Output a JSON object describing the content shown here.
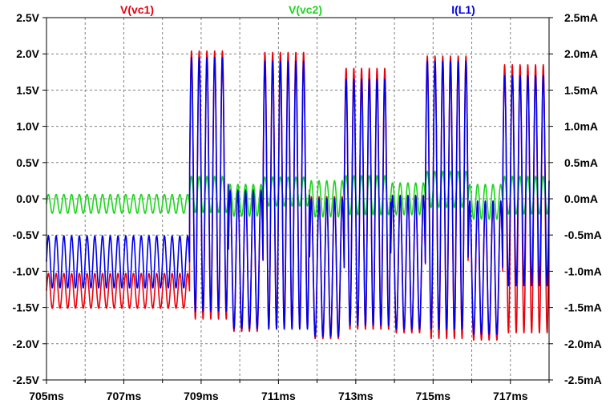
{
  "chart_data": {
    "type": "line",
    "title": "",
    "x_unit": "ms",
    "left_unit": "V",
    "right_unit": "mA",
    "xlim": [
      705,
      718
    ],
    "ylim_left": [
      -2.5,
      2.5
    ],
    "ylim_right": [
      -2.5,
      2.5
    ],
    "grid": true,
    "legend_placement": "top",
    "x_ticks": [
      {
        "value": 705,
        "label": "705ms"
      },
      {
        "value": 707,
        "label": "707ms"
      },
      {
        "value": 709,
        "label": "709ms"
      },
      {
        "value": 711,
        "label": "711ms"
      },
      {
        "value": 713,
        "label": "713ms"
      },
      {
        "value": 715,
        "label": "715ms"
      },
      {
        "value": 717,
        "label": "717ms"
      }
    ],
    "x_minor_ticks": [
      706,
      708,
      710,
      712,
      714,
      716,
      718
    ],
    "y_ticks_left": [
      {
        "value": 2.5,
        "label": "2.5V"
      },
      {
        "value": 2.0,
        "label": "2.0V"
      },
      {
        "value": 1.5,
        "label": "1.5V"
      },
      {
        "value": 1.0,
        "label": "1.0V"
      },
      {
        "value": 0.5,
        "label": "0.5V"
      },
      {
        "value": 0.0,
        "label": "0.0V"
      },
      {
        "value": -0.5,
        "label": "-0.5V"
      },
      {
        "value": -1.0,
        "label": "-1.0V"
      },
      {
        "value": -1.5,
        "label": "-1.5V"
      },
      {
        "value": -2.0,
        "label": "-2.0V"
      },
      {
        "value": -2.5,
        "label": "-2.5V"
      }
    ],
    "y_ticks_right": [
      {
        "value": 2.5,
        "label": "2.5mA"
      },
      {
        "value": 2.0,
        "label": "2.0mA"
      },
      {
        "value": 1.5,
        "label": "1.5mA"
      },
      {
        "value": 1.0,
        "label": "1.0mA"
      },
      {
        "value": 0.5,
        "label": "0.5mA"
      },
      {
        "value": 0.0,
        "label": "0.0mA"
      },
      {
        "value": -0.5,
        "label": "-0.5mA"
      },
      {
        "value": -1.0,
        "label": "-1.0mA"
      },
      {
        "value": -1.5,
        "label": "-1.5mA"
      },
      {
        "value": -2.0,
        "label": "-2.0mA"
      },
      {
        "value": -2.5,
        "label": "-2.5mA"
      }
    ],
    "carrier_period_ms": 0.2,
    "series": [
      {
        "name": "V(vc1)",
        "color": "#e8000b",
        "axis": "left",
        "segments": [
          {
            "start": 705.0,
            "end": 708.7,
            "center": -1.27,
            "amp": 0.24
          },
          {
            "start": 708.7,
            "end": 709.7,
            "center": 0.19,
            "amp": 1.85
          },
          {
            "start": 709.7,
            "end": 710.6,
            "center": -0.85,
            "amp": 0.98
          },
          {
            "start": 710.6,
            "end": 711.8,
            "center": 0.12,
            "amp": 1.9
          },
          {
            "start": 711.8,
            "end": 712.7,
            "center": -0.95,
            "amp": 0.98
          },
          {
            "start": 712.7,
            "end": 713.9,
            "center": 0.0,
            "amp": 1.8
          },
          {
            "start": 713.9,
            "end": 714.8,
            "center": -0.9,
            "amp": 0.95
          },
          {
            "start": 714.8,
            "end": 715.9,
            "center": 0.02,
            "amp": 1.95
          },
          {
            "start": 715.9,
            "end": 716.8,
            "center": -1.0,
            "amp": 0.95
          },
          {
            "start": 716.8,
            "end": 718.0,
            "center": 0.0,
            "amp": 1.85
          }
        ]
      },
      {
        "name": "V(vc2)",
        "color": "#1ed41e",
        "axis": "left",
        "segments": [
          {
            "start": 705.0,
            "end": 708.7,
            "center": -0.07,
            "amp": 0.13
          },
          {
            "start": 708.7,
            "end": 709.7,
            "center": 0.06,
            "amp": 0.25
          },
          {
            "start": 709.7,
            "end": 710.6,
            "center": -0.02,
            "amp": 0.22
          },
          {
            "start": 710.6,
            "end": 711.8,
            "center": 0.1,
            "amp": 0.2
          },
          {
            "start": 711.8,
            "end": 712.7,
            "center": 0.0,
            "amp": 0.25
          },
          {
            "start": 712.7,
            "end": 713.9,
            "center": 0.05,
            "amp": 0.27
          },
          {
            "start": 713.9,
            "end": 714.8,
            "center": 0.0,
            "amp": 0.22
          },
          {
            "start": 714.8,
            "end": 715.9,
            "center": 0.13,
            "amp": 0.25
          },
          {
            "start": 715.9,
            "end": 716.8,
            "center": -0.04,
            "amp": 0.24
          },
          {
            "start": 716.8,
            "end": 718.0,
            "center": 0.05,
            "amp": 0.26
          }
        ]
      },
      {
        "name": "I(L1)",
        "color": "#0000e6",
        "axis": "right",
        "segments": [
          {
            "start": 705.0,
            "end": 708.7,
            "center": -0.87,
            "amp": 0.36
          },
          {
            "start": 708.7,
            "end": 709.7,
            "center": 0.2,
            "amp": 1.75
          },
          {
            "start": 709.7,
            "end": 710.6,
            "center": -0.84,
            "amp": 0.95
          },
          {
            "start": 710.6,
            "end": 711.8,
            "center": 0.05,
            "amp": 1.85
          },
          {
            "start": 711.8,
            "end": 712.7,
            "center": -0.95,
            "amp": 0.95
          },
          {
            "start": 712.7,
            "end": 713.9,
            "center": -0.05,
            "amp": 1.7
          },
          {
            "start": 713.9,
            "end": 714.8,
            "center": -0.88,
            "amp": 0.92
          },
          {
            "start": 714.8,
            "end": 715.9,
            "center": 0.05,
            "amp": 1.85
          },
          {
            "start": 715.9,
            "end": 716.8,
            "center": -0.95,
            "amp": 0.92
          },
          {
            "start": 716.8,
            "end": 718.0,
            "center": 0.25,
            "amp": 1.45
          }
        ]
      }
    ]
  }
}
